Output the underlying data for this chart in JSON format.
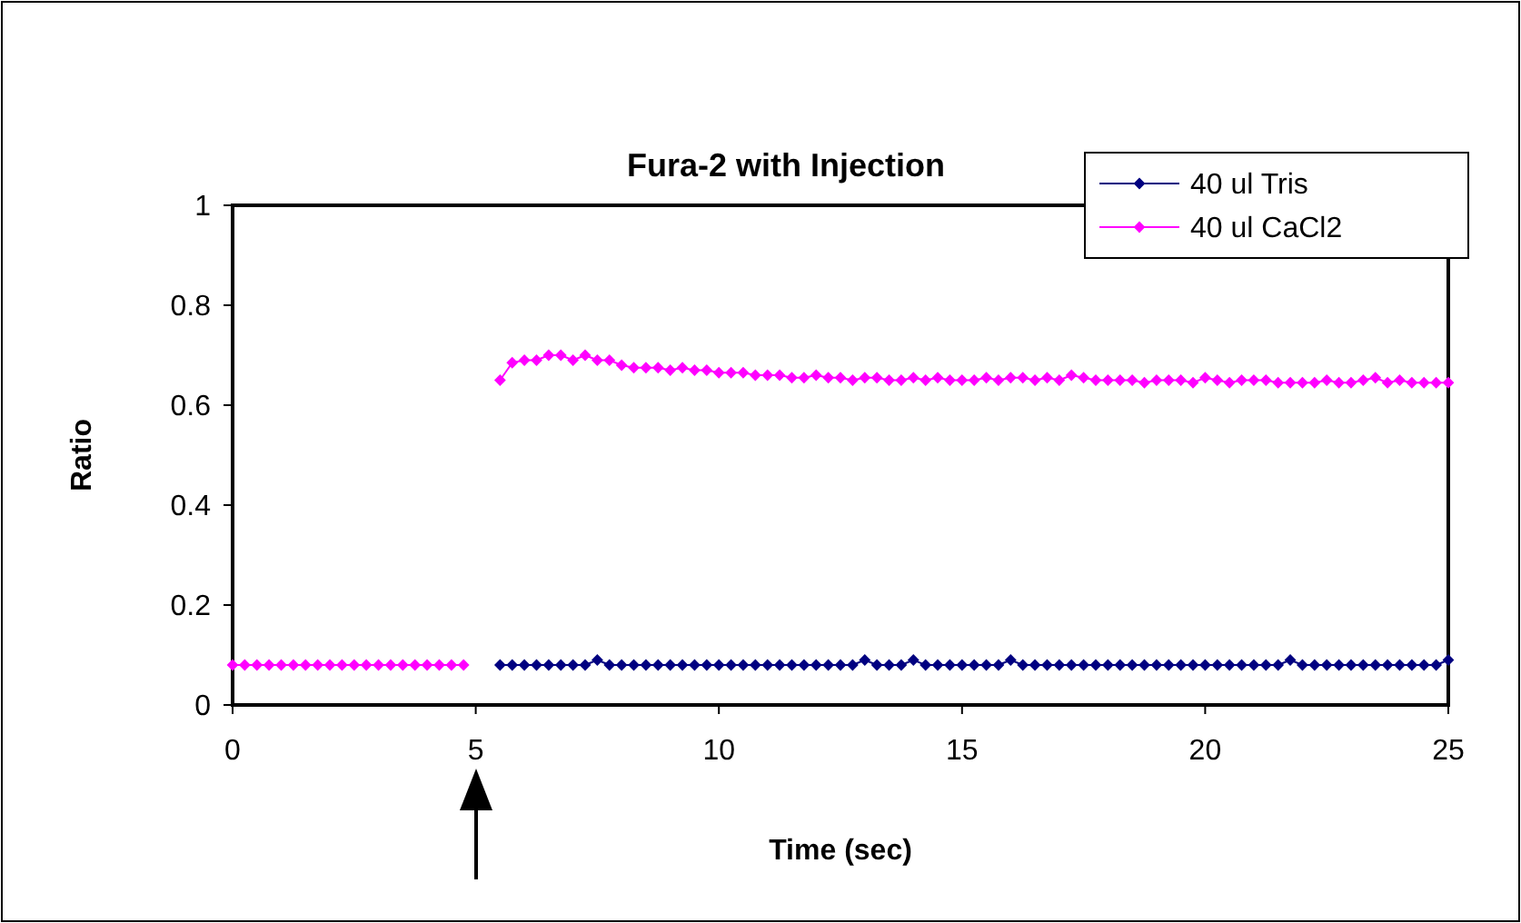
{
  "chart_data": {
    "type": "line",
    "title": "Fura-2 with Injection",
    "xlabel": "Time (sec)",
    "ylabel": "Ratio",
    "xlim": [
      0,
      25
    ],
    "xticks": [
      0,
      5,
      10,
      15,
      20,
      25
    ],
    "ylim": [
      0,
      1
    ],
    "yticks": [
      0,
      0.2,
      0.4,
      0.6,
      0.8,
      1
    ],
    "grid": false,
    "legend": "top right",
    "marker": "diamond",
    "line_style": "solid",
    "series": [
      {
        "name": "40 ul Tris",
        "color": "#000080",
        "x": [
          5.5,
          5.75,
          6,
          6.25,
          6.5,
          6.75,
          7,
          7.25,
          7.5,
          7.75,
          8,
          8.25,
          8.5,
          8.75,
          9,
          9.25,
          9.5,
          9.75,
          10,
          10.25,
          10.5,
          10.75,
          11,
          11.25,
          11.5,
          11.75,
          12,
          12.25,
          12.5,
          12.75,
          13,
          13.25,
          13.5,
          13.75,
          14,
          14.25,
          14.5,
          14.75,
          15,
          15.25,
          15.5,
          15.75,
          16,
          16.25,
          16.5,
          16.75,
          17,
          17.25,
          17.5,
          17.75,
          18,
          18.25,
          18.5,
          18.75,
          19,
          19.25,
          19.5,
          19.75,
          20,
          20.25,
          20.5,
          20.75,
          21,
          21.25,
          21.5,
          21.75,
          22,
          22.25,
          22.5,
          22.75,
          23,
          23.25,
          23.5,
          23.75,
          24,
          24.25,
          24.5,
          24.75,
          25
        ],
        "values": [
          0.08,
          0.08,
          0.08,
          0.08,
          0.08,
          0.08,
          0.08,
          0.08,
          0.09,
          0.08,
          0.08,
          0.08,
          0.08,
          0.08,
          0.08,
          0.08,
          0.08,
          0.08,
          0.08,
          0.08,
          0.08,
          0.08,
          0.08,
          0.08,
          0.08,
          0.08,
          0.08,
          0.08,
          0.08,
          0.08,
          0.09,
          0.08,
          0.08,
          0.08,
          0.09,
          0.08,
          0.08,
          0.08,
          0.08,
          0.08,
          0.08,
          0.08,
          0.09,
          0.08,
          0.08,
          0.08,
          0.08,
          0.08,
          0.08,
          0.08,
          0.08,
          0.08,
          0.08,
          0.08,
          0.08,
          0.08,
          0.08,
          0.08,
          0.08,
          0.08,
          0.08,
          0.08,
          0.08,
          0.08,
          0.08,
          0.09,
          0.08,
          0.08,
          0.08,
          0.08,
          0.08,
          0.08,
          0.08,
          0.08,
          0.08,
          0.08,
          0.08,
          0.08,
          0.09
        ]
      },
      {
        "name": "40 ul CaCl2",
        "color": "#ff00ff",
        "x": [
          0,
          0.25,
          0.5,
          0.75,
          1,
          1.25,
          1.5,
          1.75,
          2,
          2.25,
          2.5,
          2.75,
          3,
          3.25,
          3.5,
          3.75,
          4,
          4.25,
          4.5,
          4.75,
          5.25,
          5.5,
          5.75,
          6,
          6.25,
          6.5,
          6.75,
          7,
          7.25,
          7.5,
          7.75,
          8,
          8.25,
          8.5,
          8.75,
          9,
          9.25,
          9.5,
          9.75,
          10,
          10.25,
          10.5,
          10.75,
          11,
          11.25,
          11.5,
          11.75,
          12,
          12.25,
          12.5,
          12.75,
          13,
          13.25,
          13.5,
          13.75,
          14,
          14.25,
          14.5,
          14.75,
          15,
          15.25,
          15.5,
          15.75,
          16,
          16.25,
          16.5,
          16.75,
          17,
          17.25,
          17.5,
          17.75,
          18,
          18.25,
          18.5,
          18.75,
          19,
          19.25,
          19.5,
          19.75,
          20,
          20.25,
          20.5,
          20.75,
          21,
          21.25,
          21.5,
          21.75,
          22,
          22.25,
          22.5,
          22.75,
          23,
          23.25,
          23.5,
          23.75,
          24,
          24.25,
          24.5,
          24.75,
          25
        ],
        "values": [
          0.08,
          0.08,
          0.08,
          0.08,
          0.08,
          0.08,
          0.08,
          0.08,
          0.08,
          0.08,
          0.08,
          0.08,
          0.08,
          0.08,
          0.08,
          0.08,
          0.08,
          0.08,
          0.08,
          0.08,
          null,
          0.65,
          0.685,
          0.69,
          0.69,
          0.7,
          0.7,
          0.69,
          0.7,
          0.69,
          0.69,
          0.68,
          0.675,
          0.675,
          0.675,
          0.67,
          0.675,
          0.67,
          0.67,
          0.665,
          0.665,
          0.665,
          0.66,
          0.66,
          0.66,
          0.655,
          0.655,
          0.66,
          0.655,
          0.655,
          0.65,
          0.655,
          0.655,
          0.65,
          0.65,
          0.655,
          0.65,
          0.655,
          0.65,
          0.65,
          0.65,
          0.655,
          0.65,
          0.655,
          0.655,
          0.65,
          0.655,
          0.65,
          0.66,
          0.655,
          0.65,
          0.65,
          0.65,
          0.65,
          0.645,
          0.65,
          0.65,
          0.65,
          0.645,
          0.655,
          0.65,
          0.645,
          0.65,
          0.65,
          0.65,
          0.645,
          0.645,
          0.645,
          0.645,
          0.65,
          0.645,
          0.645,
          0.65,
          0.655,
          0.645,
          0.65,
          0.645,
          0.645,
          0.645,
          0.645
        ]
      }
    ]
  }
}
